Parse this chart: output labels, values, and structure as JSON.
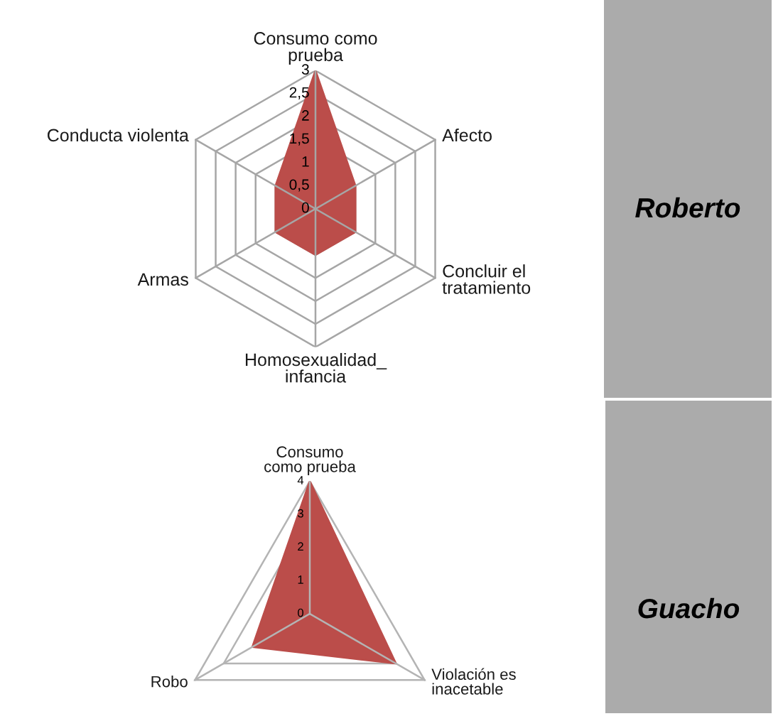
{
  "chart_data": [
    {
      "type": "radar",
      "title": "Roberto",
      "categories": [
        "Consumo como\nprueba",
        "Afecto",
        "Concluir el\ntratamiento",
        "Homosexualidad_\ninfancia",
        "Armas",
        "Conducta violenta"
      ],
      "series": [
        {
          "color": "#bb4d4a",
          "values": [
            3,
            1,
            1,
            1,
            1,
            1
          ]
        }
      ],
      "ylim": [
        0,
        3
      ],
      "yticks": [
        0,
        {
          "value": 0.5,
          "label": "0,5"
        },
        1,
        {
          "value": 1.5,
          "label": "1,5"
        },
        2,
        {
          "value": 2.5,
          "label": "2,5"
        },
        3
      ],
      "grid": true
    },
    {
      "type": "radar",
      "title": "Guacho",
      "categories": [
        "Consumo\ncomo prueba",
        "Violación es\ninacetable",
        "Robo"
      ],
      "series": [
        {
          "color": "#bb4d4a",
          "values": [
            4,
            3,
            2
          ]
        }
      ],
      "ylim": [
        0,
        4
      ],
      "yticks": [
        0,
        1,
        2,
        3,
        4
      ],
      "grid": true
    }
  ]
}
